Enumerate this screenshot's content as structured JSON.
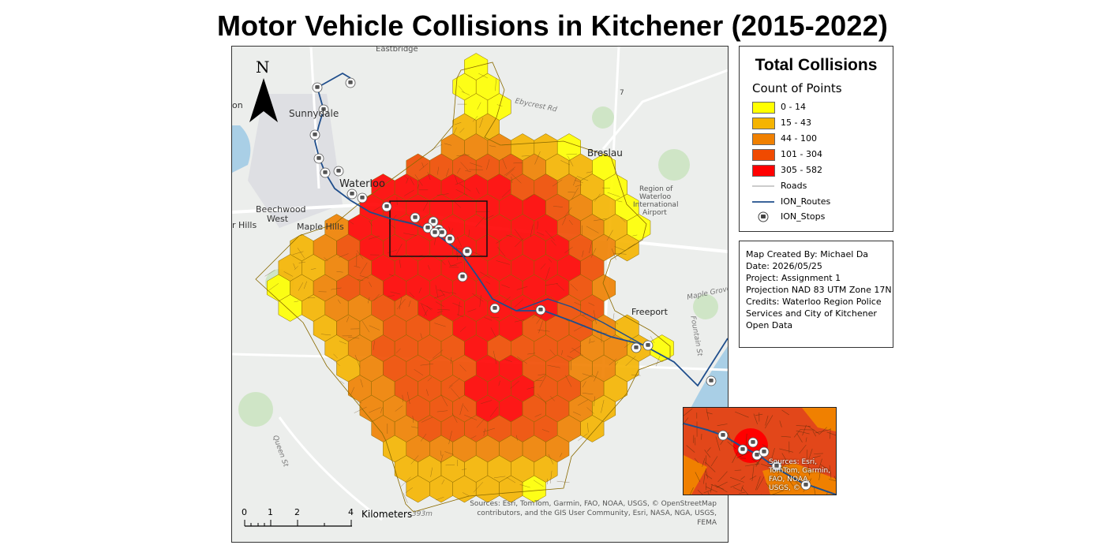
{
  "title": "Motor Vehicle Collisions in Kitchener (2015-2022)",
  "colors": {
    "class_0_14": "#ffff00",
    "class_15_43": "#f5b400",
    "class_44_100": "#f08000",
    "class_101_304": "#f04a00",
    "class_305_582": "#ff0000",
    "route": "#1f4e8c"
  },
  "map": {
    "north_label": "N",
    "place_labels": {
      "eastbridge": "Eastbridge",
      "sunnydale": "Sunnydale",
      "waterloo": "Waterloo",
      "beechwood": "Beechwood",
      "beechwood_west": "West",
      "maple_hills": "Maple Hills",
      "hills": "r Hills",
      "breslau": "Breslau",
      "airport_1": "Region of",
      "airport_2": "Waterloo",
      "airport_3": "International",
      "airport_4": "Airport",
      "freeport": "Freeport",
      "ebycrest": "Ebycrest Rd",
      "fountain": "Fountain St",
      "maple_grove": "Maple Grove",
      "queen": "Queen St",
      "hwy7": "7",
      "elev": "393m",
      "on": "on"
    },
    "scale": {
      "ticks": [
        "0",
        "1",
        "2",
        "4"
      ],
      "unit": "Kilometers"
    },
    "credits": "Sources: Esri, TomTom, Garmin, FAO, NOAA, USGS, © OpenStreetMap contributors, and the GIS User Community, Esri, NASA, NGA, USGS, FEMA"
  },
  "legend": {
    "title": "Total Collisions",
    "subtitle": "Count of Points",
    "classes": [
      {
        "label": "0 - 14"
      },
      {
        "label": "15 - 43"
      },
      {
        "label": "44 - 100"
      },
      {
        "label": "101 - 304"
      },
      {
        "label": "305 - 582"
      }
    ],
    "roads": "Roads",
    "routes": "ION_Routes",
    "stops": "ION_Stops"
  },
  "info": {
    "created_by": "Map Created By: Michael Da",
    "date": "Date: 2026/05/25",
    "project": "Project: Assignment 1",
    "projection": "Projection NAD 83 UTM Zone 17N",
    "credits_1": "Credits: Waterloo Region Police",
    "credits_2": "Services and City of Kitchener",
    "credits_3": "Open Data"
  },
  "inset": {
    "credit_1": "Sources: Esri,",
    "credit_2": "TomTom, Garmin,",
    "credit_3": "FAO, NOAA, USGS, ©"
  }
}
